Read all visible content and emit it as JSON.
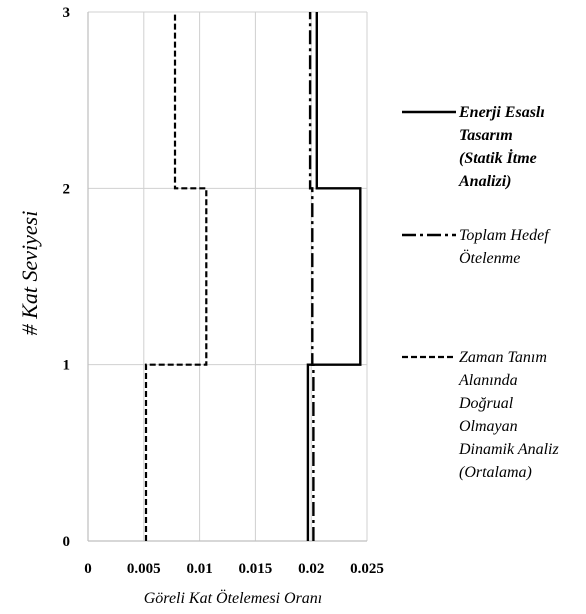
{
  "chart_data": {
    "type": "line",
    "xlabel": "Göreli Kat Ötelemesi Oranı",
    "ylabel": "# Kat Seviyesi",
    "xlim": [
      0,
      0.025
    ],
    "ylim": [
      0,
      3
    ],
    "x_ticks": [
      "0",
      "0.005",
      "0.01",
      "0.015",
      "0.02",
      "0.025"
    ],
    "y_ticks": [
      "0",
      "1",
      "2",
      "3"
    ],
    "grid": true,
    "legend_position": "right",
    "series": [
      {
        "name_lines": [
          "Enerji Esaslı",
          "Tasarım",
          "(Statik İtme",
          "Analizi)"
        ],
        "style": "solid",
        "bold": true,
        "points": [
          [
            0.0197,
            0
          ],
          [
            0.0197,
            1
          ],
          [
            0.0244,
            1
          ],
          [
            0.0244,
            2
          ],
          [
            0.0205,
            2
          ],
          [
            0.0205,
            3
          ]
        ]
      },
      {
        "name_lines": [
          "Toplam Hedef",
          "Ötelenme"
        ],
        "style": "dashdot",
        "bold": false,
        "points": [
          [
            0.0202,
            0
          ],
          [
            0.0202,
            1
          ],
          [
            0.0201,
            1
          ],
          [
            0.0201,
            2
          ],
          [
            0.0199,
            2
          ],
          [
            0.0199,
            3
          ]
        ]
      },
      {
        "name_lines": [
          "Zaman Tanım",
          "Alanında",
          "Doğrual",
          "Olmayan",
          "Dinamik Analiz",
          "(Ortalama)"
        ],
        "style": "dashed",
        "bold": false,
        "points": [
          [
            0.0052,
            0
          ],
          [
            0.0052,
            1
          ],
          [
            0.0106,
            1
          ],
          [
            0.0106,
            2
          ],
          [
            0.0078,
            2
          ],
          [
            0.0078,
            3
          ]
        ]
      }
    ]
  }
}
